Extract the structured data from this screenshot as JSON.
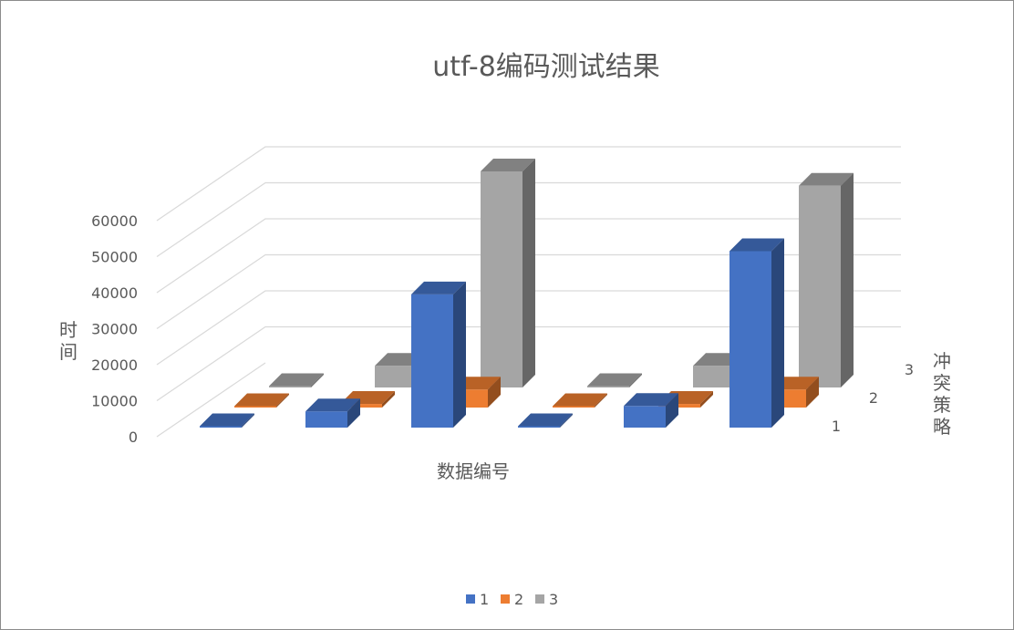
{
  "chart_data": {
    "type": "bar",
    "subtype": "3d-column",
    "title": "utf-8编码测试结果",
    "xlabel": "数据编号",
    "ylabel": "时间",
    "zlabel": "冲突策略",
    "categories": [
      "",
      "",
      "",
      "",
      "",
      ""
    ],
    "ylim": [
      0,
      60000
    ],
    "yticks": [
      0,
      10000,
      20000,
      30000,
      40000,
      50000,
      60000
    ],
    "ytick_labels": [
      "0",
      "10000",
      "20000",
      "30000",
      "40000",
      "50000",
      "60000"
    ],
    "grid": true,
    "legend_position": "bottom",
    "series": [
      {
        "name": "1",
        "color": "#4472C4",
        "values": [
          300,
          4500,
          37000,
          300,
          6000,
          49000
        ]
      },
      {
        "name": "2",
        "color": "#ED7D31",
        "values": [
          300,
          1000,
          5000,
          300,
          1000,
          5000
        ]
      },
      {
        "name": "3",
        "color": "#A5A5A5",
        "values": [
          300,
          6000,
          60000,
          300,
          6000,
          56000
        ]
      }
    ],
    "depth_labels": [
      "1",
      "2",
      "3"
    ]
  }
}
